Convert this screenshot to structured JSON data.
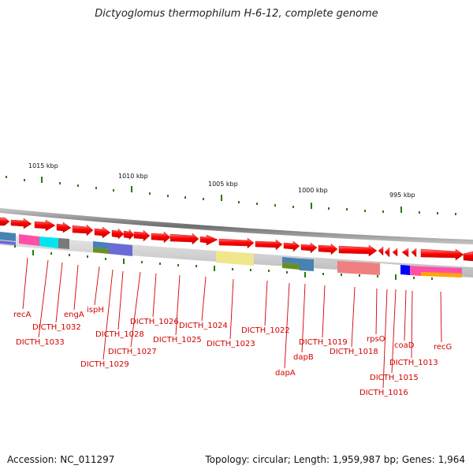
{
  "title": "Dictyoglomus thermophilum H-6-12, complete genome",
  "accession": "Accession: NC_011297",
  "summary": "Topology: circular; Length: 1,959,987 bp; Genes: 1,964",
  "scale_labels": [
    "1015 kbp",
    "1010 kbp",
    "1005 kbp",
    "1000 kbp",
    "995 kbp"
  ],
  "gene_labels": [
    "recA",
    "DICTH_1033",
    "DICTH_1032",
    "engA",
    "ispH",
    "DICTH_1029",
    "DICTH_1028",
    "DICTH_1027",
    "DICTH_1026",
    "DICTH_1025",
    "DICTH_1024",
    "DICTH_1023",
    "DICTH_1022",
    "dapA",
    "dapB",
    "DICTH_1019",
    "DICTH_1018",
    "rpsO",
    "DICTH_1016",
    "DICTH_1015",
    "DICTH_1013",
    "coaD",
    "recG"
  ],
  "colors": {
    "gene": "#ff0000",
    "label": "#d40000",
    "backbone": "#8a8a8a",
    "ticks": "#2b7a0b",
    "cog": [
      "#ff4fa8",
      "#00e5ee",
      "#7a7a7a",
      "#6b6bd6",
      "#6b8e23",
      "#f0e68c",
      "#4682b4",
      "#f08080",
      "#0000ff",
      "#ffa500",
      "#c8c8c8"
    ]
  }
}
